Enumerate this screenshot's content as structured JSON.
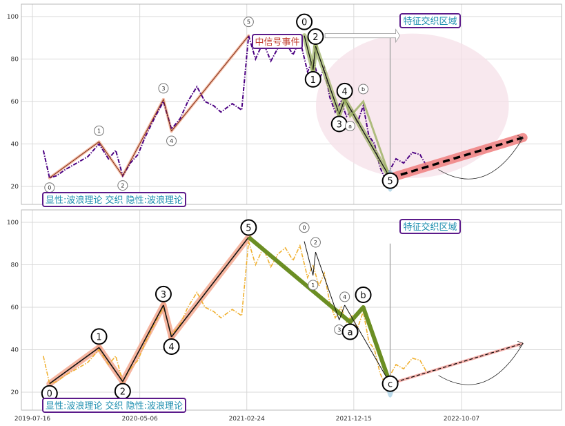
{
  "chart_data": [
    {
      "type": "line",
      "panel": "top",
      "title": "",
      "xlabel": "",
      "ylabel": "",
      "ylim": [
        10,
        105
      ],
      "yticks": [
        20,
        40,
        60,
        80,
        100
      ],
      "grid": true,
      "series": [
        {
          "style": "dash-dot",
          "color": "#4b0082",
          "x": [
            "2019-08-15",
            "2019-09-01",
            "2019-09-20",
            "2019-10-15",
            "2019-11-15",
            "2019-12-15",
            "2020-01-15",
            "2020-02-10",
            "2020-03-01",
            "2020-03-20",
            "2020-04-10",
            "2020-05-01",
            "2020-05-20",
            "2020-06-15",
            "2020-07-10",
            "2020-08-01",
            "2020-08-25",
            "2020-09-15",
            "2020-10-10",
            "2020-11-01",
            "2020-11-25",
            "2020-12-15",
            "2021-01-15",
            "2021-02-10",
            "2021-03-01",
            "2021-03-20",
            "2021-04-10",
            "2021-05-01",
            "2021-05-20",
            "2021-06-10",
            "2021-07-01",
            "2021-07-20",
            "2021-08-10",
            "2021-08-25",
            "2021-09-10",
            "2021-09-25",
            "2021-10-10",
            "2021-10-25",
            "2021-11-10",
            "2021-11-25",
            "2021-12-10",
            "2021-12-25",
            "2022-01-10",
            "2022-01-25",
            "2022-02-10",
            "2022-02-25",
            "2022-03-10",
            "2022-03-25",
            "2022-04-10",
            "2022-05-01",
            "2022-05-25",
            "2022-06-15",
            "2022-07-05"
          ],
          "values": [
            37,
            24,
            25,
            28,
            31,
            34,
            40,
            33,
            37,
            25,
            31,
            35,
            43,
            52,
            60,
            47,
            52,
            60,
            67,
            60,
            58,
            55,
            59,
            56,
            91,
            80,
            88,
            79,
            85,
            88,
            82,
            89,
            74,
            80,
            70,
            76,
            62,
            55,
            60,
            53,
            56,
            50,
            58,
            44,
            40,
            29,
            24,
            28,
            33,
            31,
            36,
            35,
            29
          ]
        }
      ],
      "waves": [
        {
          "label": "0",
          "x": "2019-09-01",
          "y": 24
        },
        {
          "label": "1",
          "x": "2020-01-15",
          "y": 41
        },
        {
          "label": "2",
          "x": "2020-03-20",
          "y": 25
        },
        {
          "label": "3",
          "x": "2020-07-10",
          "y": 61
        },
        {
          "label": "4",
          "x": "2020-08-01",
          "y": 46
        },
        {
          "label": "5",
          "x": "2021-03-01",
          "y": 91
        },
        {
          "label": "0",
          "x": "2021-08-01",
          "y": 91
        },
        {
          "label": "1",
          "x": "2021-08-25",
          "y": 75
        },
        {
          "label": "2",
          "x": "2021-09-01",
          "y": 86
        },
        {
          "label": "3",
          "x": "2021-11-05",
          "y": 54
        },
        {
          "label": "4",
          "x": "2021-11-20",
          "y": 61
        },
        {
          "label": "a",
          "x": "2021-12-05",
          "y": 53
        },
        {
          "label": "b",
          "x": "2022-01-10",
          "y": 60
        },
        {
          "label": "5",
          "x": "2022-03-25",
          "y": 24
        }
      ],
      "projection": {
        "from": {
          "x": "2022-03-25",
          "y": 24
        },
        "to": {
          "x": "2023-03-25",
          "y": 43
        }
      },
      "ellipse": {
        "cx": "2022-05-25",
        "cy": 58,
        "rx_days": 265,
        "ry": 34
      }
    },
    {
      "type": "line",
      "panel": "bottom",
      "title": "",
      "xlabel": "",
      "ylabel": "",
      "ylim": [
        10,
        105
      ],
      "yticks": [
        20,
        40,
        60,
        80,
        100
      ],
      "xticks": [
        "2019-07-16",
        "2020-05-06",
        "2021-02-24",
        "2021-12-15",
        "2022-10-07"
      ],
      "grid": true,
      "series": [
        {
          "style": "dash-dot",
          "color": "#f0b030",
          "x": [
            "2019-08-15",
            "2019-09-01",
            "2019-09-20",
            "2019-10-15",
            "2019-11-15",
            "2019-12-15",
            "2020-01-15",
            "2020-02-10",
            "2020-03-01",
            "2020-03-20",
            "2020-04-10",
            "2020-05-01",
            "2020-05-20",
            "2020-06-15",
            "2020-07-10",
            "2020-08-01",
            "2020-08-25",
            "2020-09-15",
            "2020-10-10",
            "2020-11-01",
            "2020-11-25",
            "2020-12-15",
            "2021-01-15",
            "2021-02-10",
            "2021-03-01",
            "2021-03-20",
            "2021-04-10",
            "2021-05-01",
            "2021-05-20",
            "2021-06-10",
            "2021-07-01",
            "2021-07-20",
            "2021-08-10",
            "2021-08-25",
            "2021-09-10",
            "2021-09-25",
            "2021-10-10",
            "2021-10-25",
            "2021-11-10",
            "2021-11-25",
            "2021-12-10",
            "2021-12-25",
            "2022-01-10",
            "2022-01-25",
            "2022-02-10",
            "2022-02-25",
            "2022-03-10",
            "2022-03-25",
            "2022-04-10",
            "2022-05-01",
            "2022-05-25",
            "2022-06-15",
            "2022-07-05"
          ],
          "values": [
            37,
            24,
            25,
            28,
            31,
            34,
            40,
            33,
            37,
            25,
            31,
            35,
            43,
            52,
            60,
            47,
            52,
            60,
            67,
            60,
            58,
            55,
            59,
            56,
            91,
            80,
            88,
            79,
            85,
            88,
            82,
            89,
            74,
            80,
            70,
            76,
            62,
            55,
            60,
            53,
            56,
            50,
            58,
            44,
            40,
            29,
            24,
            28,
            33,
            31,
            36,
            35,
            29
          ]
        }
      ],
      "waves": [
        {
          "label": "0",
          "x": "2019-09-01",
          "y": 24
        },
        {
          "label": "1",
          "x": "2020-01-15",
          "y": 41
        },
        {
          "label": "2",
          "x": "2020-03-20",
          "y": 25
        },
        {
          "label": "3",
          "x": "2020-07-10",
          "y": 61
        },
        {
          "label": "4",
          "x": "2020-08-01",
          "y": 46
        },
        {
          "label": "5",
          "x": "2021-03-01",
          "y": 93
        },
        {
          "label": "0",
          "x": "2021-08-01",
          "y": 91
        },
        {
          "label": "1",
          "x": "2021-08-25",
          "y": 75
        },
        {
          "label": "2",
          "x": "2021-09-01",
          "y": 86
        },
        {
          "label": "3",
          "x": "2021-11-05",
          "y": 54
        },
        {
          "label": "4",
          "x": "2021-11-20",
          "y": 61
        },
        {
          "label": "a",
          "x": "2021-12-05",
          "y": 53
        },
        {
          "label": "b",
          "x": "2022-01-10",
          "y": 60
        },
        {
          "label": "c",
          "x": "2022-03-25",
          "y": 24
        }
      ],
      "projection": {
        "from": {
          "x": "2022-03-25",
          "y": 24
        },
        "to": {
          "x": "2023-03-25",
          "y": 43
        }
      }
    }
  ],
  "annotations": {
    "top_legend": "显性:波浪理论 交织 隐性:波浪理论",
    "bottom_legend": "显性:波浪理论 交织 隐性:波浪理论",
    "top_region": "特征交织区域",
    "bottom_region": "特征交织区域",
    "signal_event": "中信号事件"
  },
  "colors": {
    "primary_series": "#4b0082",
    "secondary_series": "#f0b030",
    "major_wave": "#7a9a20",
    "box_border": "#5b1a8a",
    "box_text": "#1f8fb0",
    "signal_text": "#c0392b",
    "ellipse_fill": "#f6e0e8",
    "projection_band": "#f08080"
  }
}
